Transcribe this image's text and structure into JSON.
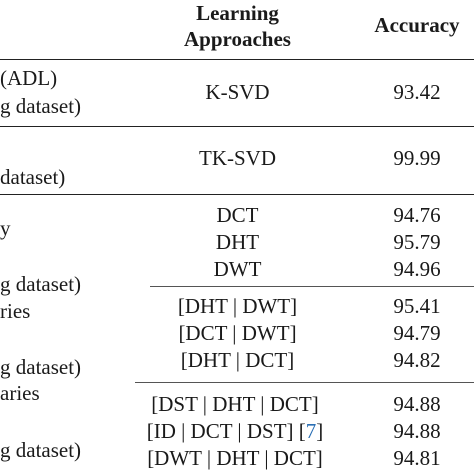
{
  "table": {
    "header": {
      "approaches": "Learning Approaches",
      "approaches_line1": "Learning",
      "approaches_line2": "Approaches",
      "accuracy": "Accuracy"
    },
    "left_fragments": [
      "(ADL)",
      "g dataset)",
      "dataset)",
      "y",
      "g dataset)",
      "ries",
      "g dataset)",
      "aries",
      "g dataset)"
    ],
    "rows": [
      {
        "approach": "K-SVD",
        "accuracy": "93.42"
      },
      {
        "approach": "TK-SVD",
        "accuracy": "99.99"
      },
      {
        "approach": "DCT",
        "accuracy": "94.76"
      },
      {
        "approach": "DHT",
        "accuracy": "95.79"
      },
      {
        "approach": "DWT",
        "accuracy": "94.96"
      },
      {
        "approach": "[DHT | DWT]",
        "accuracy": "95.41"
      },
      {
        "approach": "[DCT | DWT]",
        "accuracy": "94.79"
      },
      {
        "approach": "[DHT | DCT]",
        "accuracy": "94.82"
      },
      {
        "approach": "[DST | DHT | DCT]",
        "accuracy": "94.88"
      },
      {
        "approach_main": "[ID | DCT | DST] [",
        "approach_ref": "7",
        "approach_end": "]",
        "accuracy": "94.88"
      },
      {
        "approach": "[DWT | DHT | DCT]",
        "accuracy": "94.81"
      }
    ]
  }
}
